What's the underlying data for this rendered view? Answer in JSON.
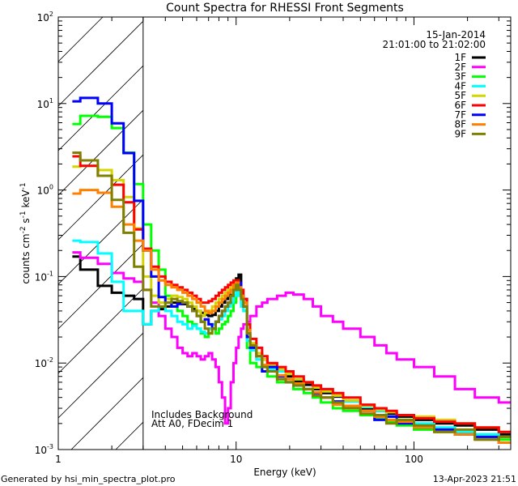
{
  "chart_data": {
    "type": "line",
    "style": "histogram-step",
    "title": "Count Spectra for RHESSI Front Segments",
    "xlabel": "Energy (keV)",
    "ylabel_parts": [
      [
        "counts cm",
        ""
      ],
      [
        "-2",
        "sup"
      ],
      [
        " s",
        ""
      ],
      [
        "-1",
        "sup"
      ],
      [
        " keV",
        ""
      ],
      [
        "-1",
        "sup"
      ]
    ],
    "xscale": "log",
    "yscale": "log",
    "xlim": [
      1,
      350
    ],
    "ylim": [
      0.001,
      100
    ],
    "x_tick_labels": [
      {
        "value": 1,
        "label": "1"
      },
      {
        "value": 10,
        "label": "10"
      },
      {
        "value": 100,
        "label": "100"
      }
    ],
    "y_tick_labels": [
      {
        "value": 0.001,
        "base": "10",
        "exp": "-3"
      },
      {
        "value": 0.01,
        "base": "10",
        "exp": "-2"
      },
      {
        "value": 0.1,
        "base": "10",
        "exp": "-1"
      },
      {
        "value": 1,
        "base": "10",
        "exp": "0"
      },
      {
        "value": 10,
        "base": "10",
        "exp": "1"
      },
      {
        "value": 100,
        "base": "10",
        "exp": "2"
      }
    ],
    "excluded_region_keV": [
      1,
      3.0
    ],
    "date": "15-Jan-2014",
    "time_range": "21:01:00 to 21:02:00",
    "annotations": [
      "Includes Background",
      "Att A0, FDecim 1"
    ],
    "legend_position": "top-right",
    "energy_edges": [
      1.2,
      1.33,
      1.67,
      2.0,
      2.33,
      2.67,
      3.0,
      3.33,
      3.67,
      4.0,
      4.33,
      4.67,
      5.0,
      5.33,
      5.67,
      6.0,
      6.33,
      6.67,
      7.0,
      7.33,
      7.67,
      8.0,
      8.33,
      8.67,
      9.0,
      9.33,
      9.67,
      10.0,
      10.33,
      10.67,
      11.0,
      11.5,
      12,
      13,
      14,
      15,
      17,
      19,
      21,
      24,
      27,
      30,
      35,
      40,
      50,
      60,
      70,
      80,
      100,
      130,
      170,
      220,
      300,
      350
    ],
    "series": [
      {
        "name": "1F",
        "color": "#000000",
        "values": [
          0.17,
          0.12,
          0.078,
          0.065,
          0.06,
          0.055,
          0.028,
          0.04,
          0.042,
          0.045,
          0.05,
          0.05,
          0.048,
          0.045,
          0.042,
          0.04,
          0.038,
          0.036,
          0.035,
          0.036,
          0.04,
          0.045,
          0.05,
          0.055,
          0.06,
          0.07,
          0.08,
          0.095,
          0.105,
          0.06,
          0.055,
          0.022,
          0.016,
          0.013,
          0.011,
          0.009,
          0.0085,
          0.007,
          0.0062,
          0.0056,
          0.005,
          0.0045,
          0.0041,
          0.0036,
          0.003,
          0.0028,
          0.0026,
          0.0024,
          0.0022,
          0.002,
          0.0019,
          0.0017,
          0.0015
        ]
      },
      {
        "name": "2F",
        "color": "#ff00ff",
        "values": [
          0.19,
          0.165,
          0.14,
          0.11,
          0.095,
          0.087,
          0.07,
          0.05,
          0.035,
          0.025,
          0.02,
          0.015,
          0.013,
          0.012,
          0.013,
          0.012,
          0.011,
          0.012,
          0.013,
          0.011,
          0.009,
          0.006,
          0.004,
          0.002,
          0.003,
          0.006,
          0.01,
          0.015,
          0.02,
          0.025,
          0.028,
          0.03,
          0.035,
          0.045,
          0.05,
          0.055,
          0.06,
          0.065,
          0.062,
          0.055,
          0.045,
          0.035,
          0.03,
          0.025,
          0.02,
          0.016,
          0.013,
          0.011,
          0.009,
          0.007,
          0.005,
          0.004,
          0.0035
        ]
      },
      {
        "name": "3F",
        "color": "#00ff00",
        "values": [
          5.8,
          7.2,
          7.0,
          5.2,
          2.7,
          1.17,
          0.4,
          0.2,
          0.12,
          0.06,
          0.045,
          0.04,
          0.035,
          0.03,
          0.028,
          0.025,
          0.022,
          0.02,
          0.022,
          0.025,
          0.022,
          0.025,
          0.028,
          0.03,
          0.035,
          0.04,
          0.05,
          0.06,
          0.07,
          0.05,
          0.04,
          0.015,
          0.01,
          0.009,
          0.008,
          0.007,
          0.006,
          0.006,
          0.005,
          0.0045,
          0.004,
          0.0035,
          0.003,
          0.0028,
          0.0025,
          0.0023,
          0.0021,
          0.0019,
          0.0017,
          0.0016,
          0.0015,
          0.0014,
          0.0013
        ]
      },
      {
        "name": "4F",
        "color": "#00ffff",
        "values": [
          0.26,
          0.25,
          0.185,
          0.087,
          0.04,
          0.04,
          0.028,
          0.04,
          0.045,
          0.04,
          0.035,
          0.03,
          0.028,
          0.025,
          0.027,
          0.025,
          0.023,
          0.022,
          0.025,
          0.028,
          0.03,
          0.032,
          0.035,
          0.04,
          0.045,
          0.05,
          0.06,
          0.07,
          0.06,
          0.045,
          0.04,
          0.018,
          0.014,
          0.011,
          0.0095,
          0.0085,
          0.008,
          0.0075,
          0.0065,
          0.006,
          0.0055,
          0.0048,
          0.0042,
          0.0036,
          0.0031,
          0.0028,
          0.0024,
          0.0022,
          0.002,
          0.0018,
          0.0016,
          0.0015,
          0.0014
        ]
      },
      {
        "name": "5F",
        "color": "#d4d400",
        "values": [
          1.86,
          1.9,
          1.7,
          1.3,
          0.83,
          0.36,
          0.1,
          0.06,
          0.05,
          0.055,
          0.06,
          0.058,
          0.055,
          0.05,
          0.045,
          0.04,
          0.035,
          0.038,
          0.04,
          0.045,
          0.05,
          0.055,
          0.06,
          0.065,
          0.07,
          0.075,
          0.085,
          0.09,
          0.075,
          0.06,
          0.05,
          0.024,
          0.017,
          0.013,
          0.011,
          0.0095,
          0.0085,
          0.0075,
          0.0065,
          0.006,
          0.0052,
          0.0047,
          0.0042,
          0.0037,
          0.0032,
          0.0029,
          0.0027,
          0.0025,
          0.0024,
          0.0022,
          0.002,
          0.0018,
          0.0016
        ]
      },
      {
        "name": "6F",
        "color": "#ff0000",
        "values": [
          2.45,
          1.9,
          1.46,
          1.15,
          0.72,
          0.35,
          0.21,
          0.13,
          0.1,
          0.087,
          0.08,
          0.075,
          0.07,
          0.065,
          0.06,
          0.055,
          0.05,
          0.05,
          0.052,
          0.055,
          0.06,
          0.065,
          0.07,
          0.075,
          0.08,
          0.085,
          0.09,
          0.09,
          0.08,
          0.07,
          0.055,
          0.028,
          0.019,
          0.015,
          0.012,
          0.01,
          0.009,
          0.008,
          0.007,
          0.006,
          0.0055,
          0.005,
          0.0045,
          0.004,
          0.0033,
          0.003,
          0.0028,
          0.0025,
          0.0023,
          0.0021,
          0.002,
          0.0018,
          0.0016
        ]
      },
      {
        "name": "7F",
        "color": "#0000ff",
        "values": [
          10.6,
          11.6,
          10,
          5.9,
          2.67,
          0.75,
          0.2,
          0.1,
          0.058,
          0.05,
          0.045,
          0.048,
          0.05,
          0.045,
          0.04,
          0.035,
          0.03,
          0.032,
          0.028,
          0.025,
          0.03,
          0.035,
          0.04,
          0.045,
          0.05,
          0.06,
          0.07,
          0.08,
          0.085,
          0.06,
          0.045,
          0.02,
          0.015,
          0.012,
          0.008,
          0.009,
          0.007,
          0.006,
          0.0055,
          0.005,
          0.0045,
          0.004,
          0.0036,
          0.003,
          0.0028,
          0.0022,
          0.0024,
          0.002,
          0.0018,
          0.0017,
          0.0015,
          0.0014,
          0.0012
        ]
      },
      {
        "name": "8F",
        "color": "#ff8000",
        "values": [
          0.91,
          1.0,
          0.93,
          0.64,
          0.4,
          0.26,
          0.2,
          0.12,
          0.09,
          0.08,
          0.075,
          0.07,
          0.065,
          0.06,
          0.055,
          0.05,
          0.045,
          0.04,
          0.038,
          0.04,
          0.045,
          0.05,
          0.055,
          0.06,
          0.065,
          0.07,
          0.08,
          0.085,
          0.075,
          0.06,
          0.05,
          0.024,
          0.016,
          0.012,
          0.0095,
          0.008,
          0.0072,
          0.0065,
          0.0058,
          0.005,
          0.0046,
          0.004,
          0.0033,
          0.0032,
          0.0028,
          0.0024,
          0.0022,
          0.0021,
          0.0018,
          0.0016,
          0.0015,
          0.0013,
          0.0012
        ]
      },
      {
        "name": "9F",
        "color": "#808000",
        "values": [
          2.7,
          2.2,
          1.46,
          0.77,
          0.32,
          0.13,
          0.07,
          0.045,
          0.045,
          0.05,
          0.055,
          0.052,
          0.05,
          0.045,
          0.04,
          0.035,
          0.03,
          0.025,
          0.022,
          0.025,
          0.03,
          0.035,
          0.04,
          0.045,
          0.05,
          0.06,
          0.07,
          0.08,
          0.07,
          0.055,
          0.045,
          0.022,
          0.016,
          0.012,
          0.009,
          0.008,
          0.0065,
          0.006,
          0.0055,
          0.005,
          0.0042,
          0.004,
          0.0035,
          0.003,
          0.0026,
          0.0025,
          0.002,
          0.0022,
          0.0019,
          0.0016,
          0.0017,
          0.0013,
          0.0014
        ]
      }
    ]
  },
  "footer": {
    "generated_by": "Generated by hsi_min_spectra_plot.pro",
    "timestamp": "13-Apr-2023 21:51"
  }
}
